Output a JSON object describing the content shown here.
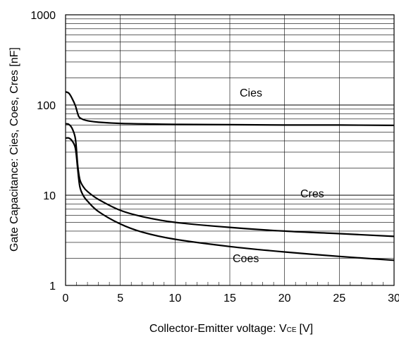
{
  "chart_data": {
    "type": "line",
    "xlabel": "Collector-Emitter voltage: V",
    "xlabel_subscript": "CE",
    "xlabel_unit": "[V]",
    "ylabel": "Gate Capacitance: Cies, Coes, Cres [nF]",
    "xlim": [
      0,
      30
    ],
    "ylim": [
      1,
      1000
    ],
    "yscale": "log",
    "x_ticks": [
      "0",
      "5",
      "10",
      "15",
      "20",
      "25",
      "30"
    ],
    "y_ticks": [
      "1",
      "10",
      "100",
      "1000"
    ],
    "grid": true,
    "series": [
      {
        "name": "Cies",
        "x": [
          0,
          0.3,
          0.6,
          0.9,
          1.2,
          1.5,
          2,
          3,
          5,
          8,
          10,
          15,
          20,
          25,
          30
        ],
        "y": [
          140,
          135,
          118,
          98,
          75,
          70,
          67,
          64.5,
          62.5,
          61.5,
          61,
          60.5,
          60,
          60,
          59.5
        ]
      },
      {
        "name": "Cres",
        "x": [
          0,
          0.3,
          0.6,
          0.9,
          1.1,
          1.3,
          1.6,
          2,
          3,
          5,
          7,
          10,
          15,
          20,
          25,
          30
        ],
        "y": [
          62,
          61,
          55,
          42,
          22,
          15,
          12.5,
          11,
          9,
          6.8,
          5.8,
          5,
          4.4,
          4,
          3.75,
          3.5
        ]
      },
      {
        "name": "Coes",
        "x": [
          0,
          0.3,
          0.6,
          0.9,
          1.1,
          1.3,
          1.6,
          2,
          3,
          5,
          7,
          10,
          15,
          20,
          25,
          30
        ],
        "y": [
          43,
          43,
          40,
          33,
          20,
          12.5,
          10,
          8.6,
          6.6,
          4.8,
          3.9,
          3.25,
          2.7,
          2.35,
          2.1,
          1.9
        ]
      }
    ]
  }
}
